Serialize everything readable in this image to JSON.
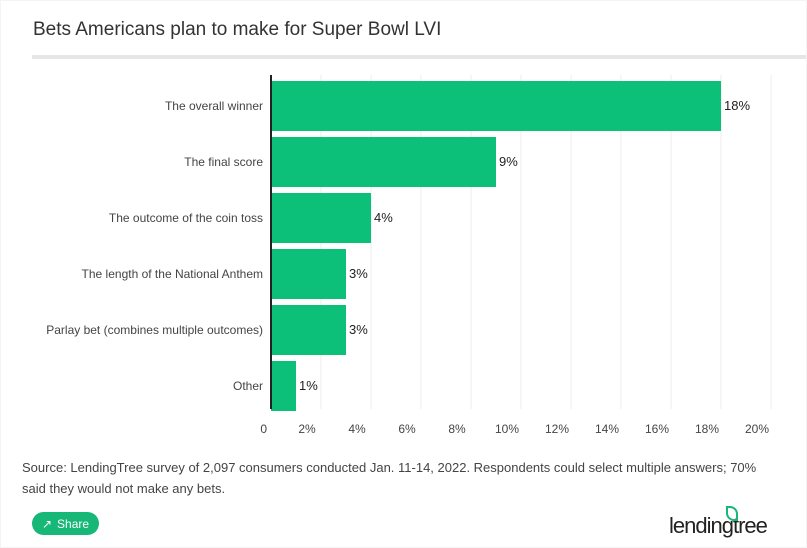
{
  "chart_data": {
    "type": "bar",
    "orientation": "horizontal",
    "title": "Bets Americans plan to make for Super Bowl LVI",
    "categories": [
      "The overall winner",
      "The final score",
      "The outcome of the coin toss",
      "The length of the National Anthem",
      "Parlay bet (combines multiple outcomes)",
      "Other"
    ],
    "values": [
      18,
      9,
      4,
      3,
      3,
      1
    ],
    "data_labels": [
      "18%",
      "9%",
      "4%",
      "3%",
      "3%",
      "1%"
    ],
    "xlim": [
      0,
      20
    ],
    "xticks": [
      "0",
      "2%",
      "4%",
      "6%",
      "8%",
      "10%",
      "12%",
      "14%",
      "16%",
      "18%",
      "20%"
    ],
    "grid": true,
    "bar_color": "#0dc079"
  },
  "source": "Source: LendingTree survey of 2,097 consumers conducted Jan. 11-14, 2022. Respondents could select multiple answers; 70% said they would not make any bets.",
  "share_label": "Share",
  "share_icon": "share-icon",
  "logo_text": "lendingtree"
}
